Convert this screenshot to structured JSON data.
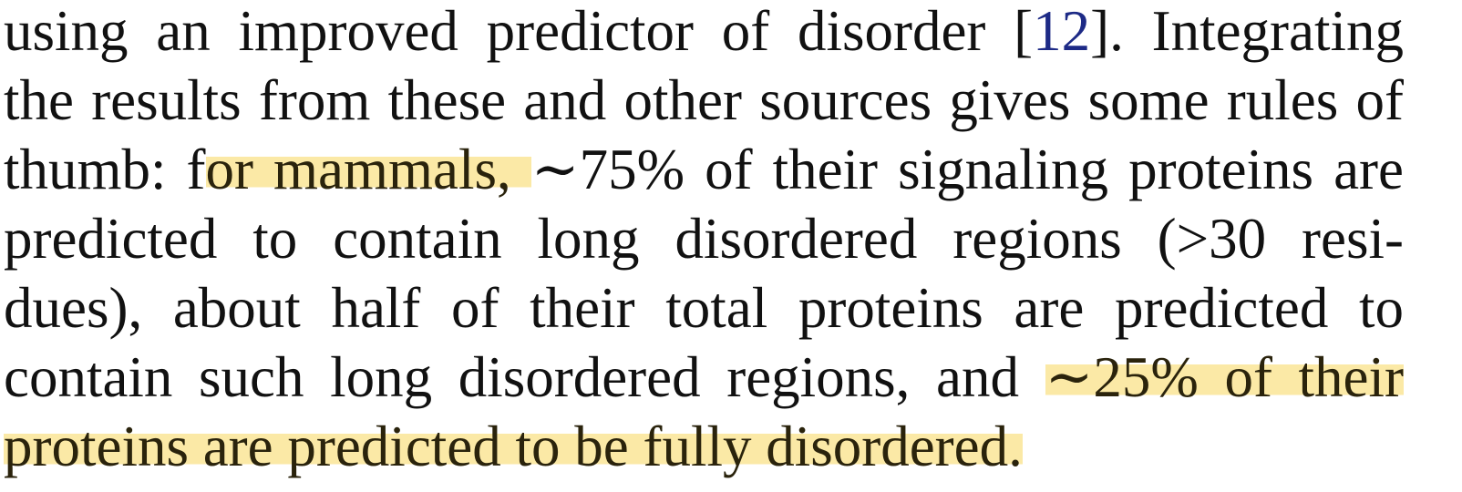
{
  "document": {
    "lines": [
      {
        "a": "using an improved predictor of disorder [",
        "ref": "12",
        "b": "]. Integrating"
      },
      {
        "text": "the results from these and other sources gives some rules of"
      },
      {
        "a": "thumb: f",
        "hl": "or mammals, ",
        "b": "∼75% of their signaling proteins are"
      },
      {
        "text": "predicted to contain long disordered regions (>30 resi-"
      },
      {
        "text": "dues), about half of their total proteins are predicted to"
      },
      {
        "a": "contain such long disordered regions, and ",
        "hl": "∼25% of their"
      },
      {
        "hl": "proteins are predicted to be fully disordered."
      }
    ],
    "highlight_color": "#fbe9a6",
    "link_color": "#1d2a86"
  }
}
